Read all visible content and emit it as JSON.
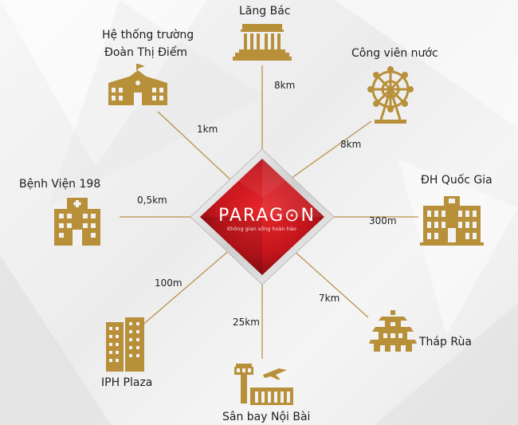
{
  "center": {
    "brand": "PARAG⊙N",
    "tagline": "Không gian sống hoàn hảo"
  },
  "places": [
    {
      "id": "lang-bac",
      "name": "Lăng Bác",
      "distance": "8km",
      "icon": "mausoleum-icon"
    },
    {
      "id": "cong-vien-nuoc",
      "name": "Công viên nước",
      "distance": "8km",
      "icon": "ferris-wheel-icon"
    },
    {
      "id": "dh-quoc-gia",
      "name": "ĐH Quốc Gia",
      "distance": "300m",
      "icon": "university-icon"
    },
    {
      "id": "thap-rua",
      "name": "Tháp Rùa",
      "distance": "7km",
      "icon": "pagoda-icon"
    },
    {
      "id": "san-bay",
      "name": "Sân bay Nội Bài",
      "distance": "25km",
      "icon": "airport-icon"
    },
    {
      "id": "iph-plaza",
      "name": "IPH Plaza",
      "distance": "100m",
      "icon": "office-towers-icon"
    },
    {
      "id": "benh-vien",
      "name": "Bệnh Viện 198",
      "distance": "0,5km",
      "icon": "hospital-icon"
    },
    {
      "id": "truong-hoc",
      "name_line1": "Hệ thống trường",
      "name_line2": "Đoàn Thị Điểm",
      "distance": "1km",
      "icon": "school-icon"
    }
  ],
  "colors": {
    "gold": "#b8903a",
    "red": "#c4161c",
    "line": "#b8914a"
  }
}
